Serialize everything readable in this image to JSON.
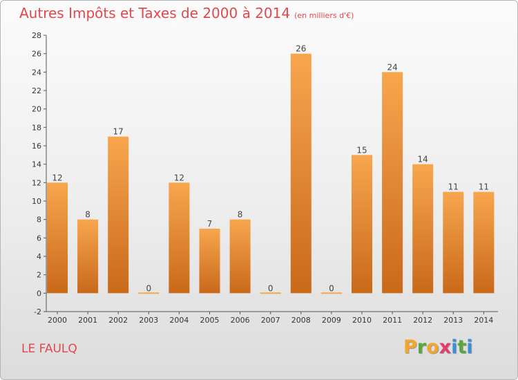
{
  "header": {
    "title": "Autres Impôts et Taxes de 2000 à 2014",
    "unit": "(en milliers d'€)"
  },
  "footer": {
    "commune": "LE FAULQ",
    "brand_letters": [
      "P",
      "r",
      "o",
      "x",
      "i",
      "t",
      "i"
    ],
    "brand_colors": [
      "#f2a72a",
      "#5aa83c",
      "#f2a72a",
      "#e23c6e",
      "#3a8fd6",
      "#5aa83c",
      "#3a8fd6"
    ]
  },
  "colors": {
    "accent": "#e0484d",
    "bar_light": "#f7a64e",
    "bar_dark": "#c9691a",
    "axis": "#555555"
  },
  "chart_data": {
    "type": "bar",
    "categories": [
      "2000",
      "2001",
      "2002",
      "2003",
      "2004",
      "2005",
      "2006",
      "2007",
      "2008",
      "2009",
      "2010",
      "2011",
      "2012",
      "2013",
      "2014"
    ],
    "values": [
      12,
      8,
      17,
      0,
      12,
      7,
      8,
      0,
      26,
      0,
      15,
      24,
      14,
      11,
      11
    ],
    "labels": [
      "12",
      "8",
      "17",
      "0",
      "12",
      "7",
      "8",
      "0",
      "26",
      "0",
      "15",
      "24",
      "14",
      "11",
      "11"
    ],
    "title": "Autres Impôts et Taxes de 2000 à 2014",
    "ylim": [
      -2,
      28
    ],
    "yticks": [
      -2,
      0,
      2,
      4,
      6,
      8,
      10,
      12,
      14,
      16,
      18,
      20,
      22,
      24,
      26,
      28
    ],
    "grid": false,
    "legend": "none"
  }
}
